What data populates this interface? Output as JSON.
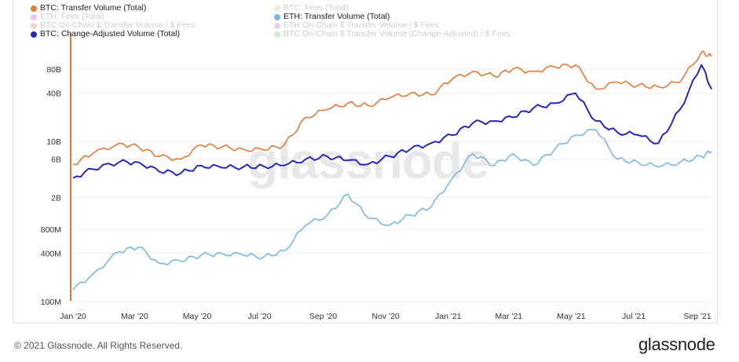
{
  "chart_data": {
    "type": "line",
    "y_scale": "log",
    "grid": "horizontal",
    "legend_position": "top-left",
    "x_ticks": [
      "Jan '20",
      "Mar '20",
      "May '20",
      "Jul '20",
      "Sep '20",
      "Nov '20",
      "Jan '21",
      "Mar '21",
      "May '21",
      "Jul '21",
      "Sep '21"
    ],
    "y_ticks": [
      {
        "label": "100M",
        "value": 100000000
      },
      {
        "label": "400M",
        "value": 400000000
      },
      {
        "label": "800M",
        "value": 800000000
      },
      {
        "label": "2B",
        "value": 2000000000
      },
      {
        "label": "6B",
        "value": 6000000000
      },
      {
        "label": "10B",
        "value": 10000000000
      },
      {
        "label": "40B",
        "value": 40000000000
      },
      {
        "label": "80B",
        "value": 80000000000
      }
    ],
    "legend": [
      {
        "label": "BTC: Transfer Volume (Total)",
        "color": "#e07b39",
        "active": true
      },
      {
        "label": "BTC: Fees (Total)",
        "color": "#a6e07a",
        "active": false
      },
      {
        "label": "ETH: Fees (Total)",
        "color": "#c24ad6",
        "active": false
      },
      {
        "label": "ETH: Transfer Volume (Total)",
        "color": "#7cb7e3",
        "active": true
      },
      {
        "label": "BTC On-Chain $ Transfer Volume / $ Fees",
        "color": "#e07b39",
        "active": false
      },
      {
        "label": "ETH On-Chain $ Transfer Volume / $ Fees",
        "color": "#d86ad6",
        "active": false
      },
      {
        "label": "BTC: Change-Adjusted Volume (Total)",
        "color": "#2929b8",
        "active": true
      },
      {
        "label": "BTC On-Chain $ Transfer Volume (Change-Adjusted) / $ Fees",
        "color": "#79c96a",
        "active": false
      }
    ],
    "series": [
      {
        "name": "BTC: Transfer Volume (Total)",
        "color": "#e07b39",
        "dates": [
          "2020-01-01",
          "2020-01-20",
          "2020-02-15",
          "2020-03-05",
          "2020-03-25",
          "2020-04-15",
          "2020-05-05",
          "2020-05-25",
          "2020-06-15",
          "2020-07-05",
          "2020-07-25",
          "2020-08-15",
          "2020-09-05",
          "2020-09-25",
          "2020-10-15",
          "2020-11-05",
          "2020-11-25",
          "2020-12-15",
          "2021-01-05",
          "2021-01-25",
          "2021-02-15",
          "2021-03-05",
          "2021-03-25",
          "2021-04-15",
          "2021-05-05",
          "2021-05-25",
          "2021-06-15",
          "2021-07-05",
          "2021-07-25",
          "2021-08-15",
          "2021-09-05",
          "2021-09-15"
        ],
        "values": [
          5200000000,
          7000000000,
          9500000000,
          8500000000,
          6500000000,
          6000000000,
          9000000000,
          8500000000,
          8000000000,
          7800000000,
          9000000000,
          20000000000,
          25000000000,
          30000000000,
          28000000000,
          35000000000,
          40000000000,
          38000000000,
          60000000000,
          75000000000,
          65000000000,
          80000000000,
          75000000000,
          85000000000,
          90000000000,
          45000000000,
          55000000000,
          50000000000,
          48000000000,
          55000000000,
          130000000000,
          115000000000
        ]
      },
      {
        "name": "ETH: Transfer Volume (Total)",
        "color": "#7cb7e3",
        "dates": [
          "2020-01-01",
          "2020-01-20",
          "2020-02-15",
          "2020-03-05",
          "2020-03-25",
          "2020-04-15",
          "2020-05-05",
          "2020-05-25",
          "2020-06-15",
          "2020-07-05",
          "2020-07-25",
          "2020-08-15",
          "2020-09-05",
          "2020-09-25",
          "2020-10-15",
          "2020-11-05",
          "2020-11-25",
          "2020-12-15",
          "2021-01-05",
          "2021-01-25",
          "2021-02-15",
          "2021-03-05",
          "2021-03-25",
          "2021-04-15",
          "2021-05-05",
          "2021-05-25",
          "2021-06-15",
          "2021-07-05",
          "2021-07-25",
          "2021-08-15",
          "2021-09-05",
          "2021-09-15"
        ],
        "values": [
          140000000,
          220000000,
          420000000,
          480000000,
          300000000,
          320000000,
          380000000,
          400000000,
          380000000,
          360000000,
          430000000,
          900000000,
          1200000000,
          2200000000,
          1100000000,
          900000000,
          1200000000,
          1500000000,
          3500000000,
          7000000000,
          5000000000,
          7000000000,
          5000000000,
          8000000000,
          12000000000,
          14000000000,
          6000000000,
          5500000000,
          4800000000,
          5500000000,
          6500000000,
          7500000000
        ]
      },
      {
        "name": "BTC: Change-Adjusted Volume (Total)",
        "color": "#2929b8",
        "dates": [
          "2020-01-01",
          "2020-01-20",
          "2020-02-15",
          "2020-03-05",
          "2020-03-25",
          "2020-04-15",
          "2020-05-05",
          "2020-05-25",
          "2020-06-15",
          "2020-07-05",
          "2020-07-25",
          "2020-08-15",
          "2020-09-05",
          "2020-09-25",
          "2020-10-15",
          "2020-11-05",
          "2020-11-25",
          "2020-12-15",
          "2021-01-05",
          "2021-01-25",
          "2021-02-15",
          "2021-03-05",
          "2021-03-25",
          "2021-04-15",
          "2021-05-05",
          "2021-05-25",
          "2021-06-15",
          "2021-07-05",
          "2021-07-25",
          "2021-08-15",
          "2021-09-05",
          "2021-09-15"
        ],
        "values": [
          3500000000,
          4500000000,
          5500000000,
          5500000000,
          4200000000,
          4000000000,
          5000000000,
          4700000000,
          4800000000,
          4900000000,
          5000000000,
          6000000000,
          6500000000,
          5800000000,
          5200000000,
          6500000000,
          8000000000,
          9500000000,
          12000000000,
          17000000000,
          18000000000,
          20000000000,
          26000000000,
          30000000000,
          40000000000,
          18000000000,
          13000000000,
          12000000000,
          9500000000,
          25000000000,
          90000000000,
          45000000000
        ]
      }
    ]
  },
  "footer": {
    "copyright": "© 2021 Glassnode. All Rights Reserved.",
    "brand": "glassnode"
  },
  "watermark": "glassnode"
}
